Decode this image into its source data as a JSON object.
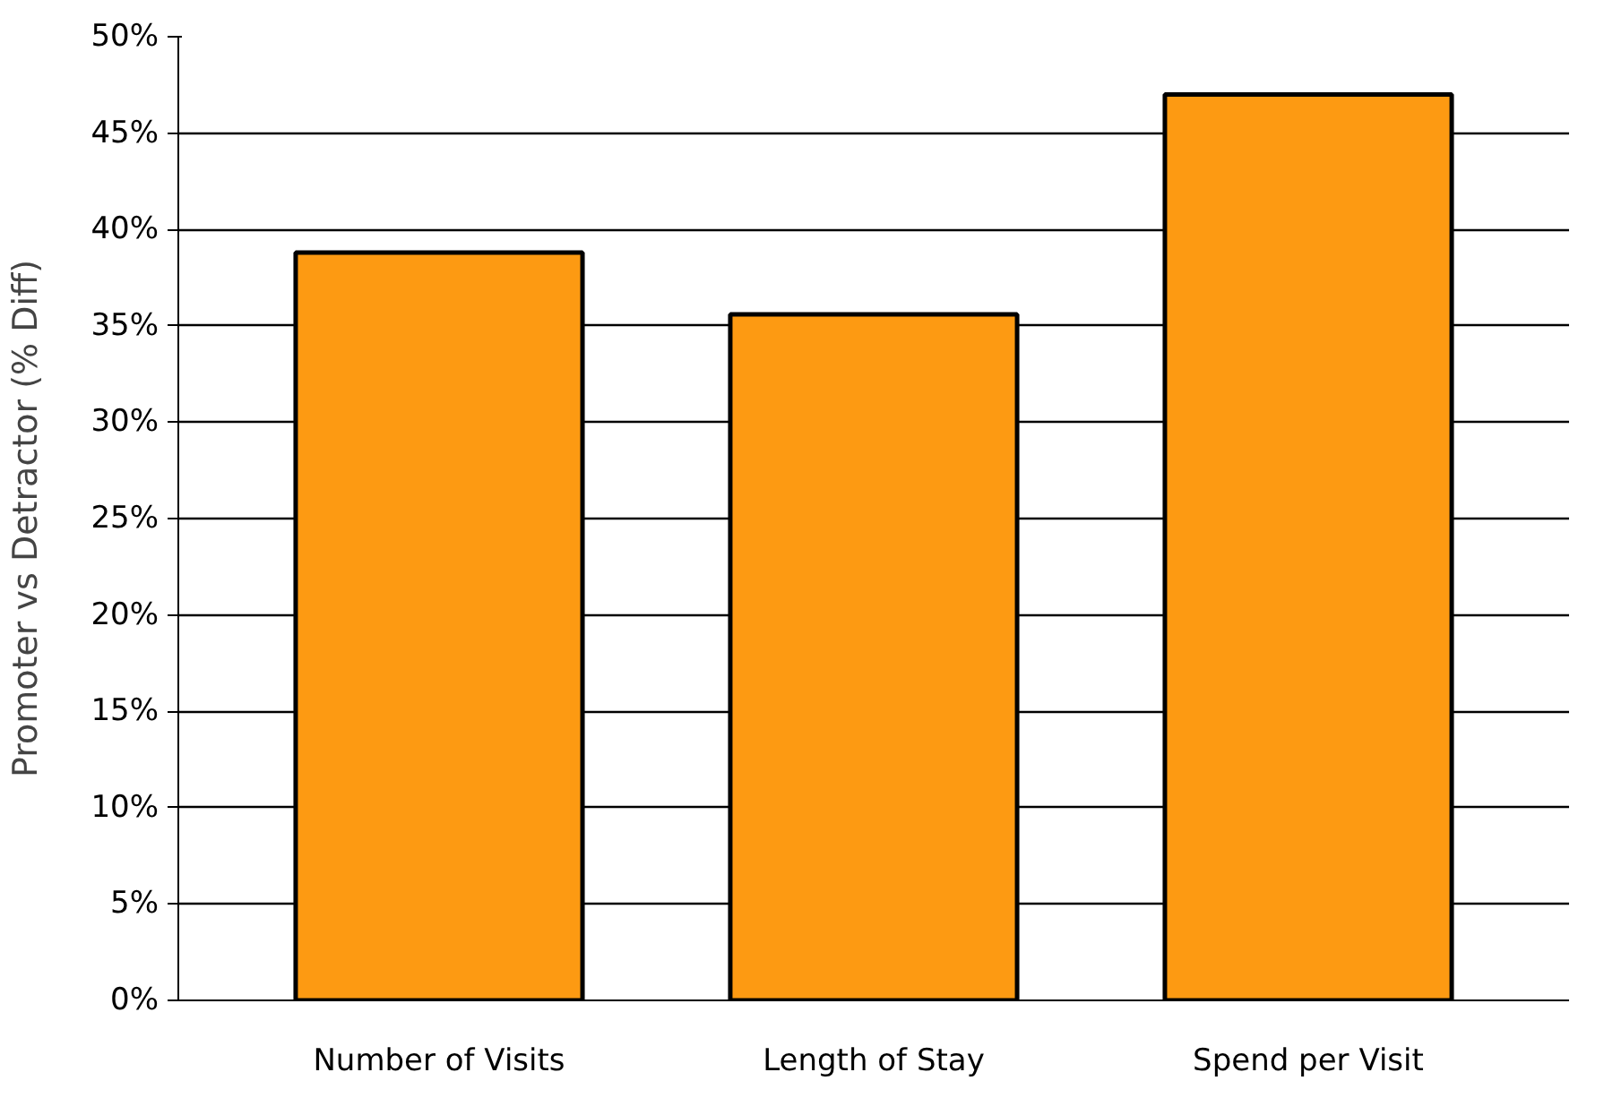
{
  "chart_data": {
    "type": "bar",
    "ylabel": "Promoter vs Detractor (% Diff)",
    "categories": [
      "Number of Visits",
      "Length of Stay",
      "Spend per Visit"
    ],
    "values": [
      38.8,
      35.6,
      47.0
    ],
    "color": "#fd9a12",
    "ylim": [
      0,
      50
    ],
    "yticks": [
      {
        "value": 0,
        "label": "0%"
      },
      {
        "value": 5,
        "label": "5%"
      },
      {
        "value": 10,
        "label": "10%"
      },
      {
        "value": 15,
        "label": "15%"
      },
      {
        "value": 20,
        "label": "20%"
      },
      {
        "value": 25,
        "label": "25%"
      },
      {
        "value": 30,
        "label": "30%"
      },
      {
        "value": 35,
        "label": "35%"
      },
      {
        "value": 40,
        "label": "40%"
      },
      {
        "value": 45,
        "label": "45%"
      },
      {
        "value": 50,
        "label": "50%"
      }
    ],
    "grid": "y"
  }
}
